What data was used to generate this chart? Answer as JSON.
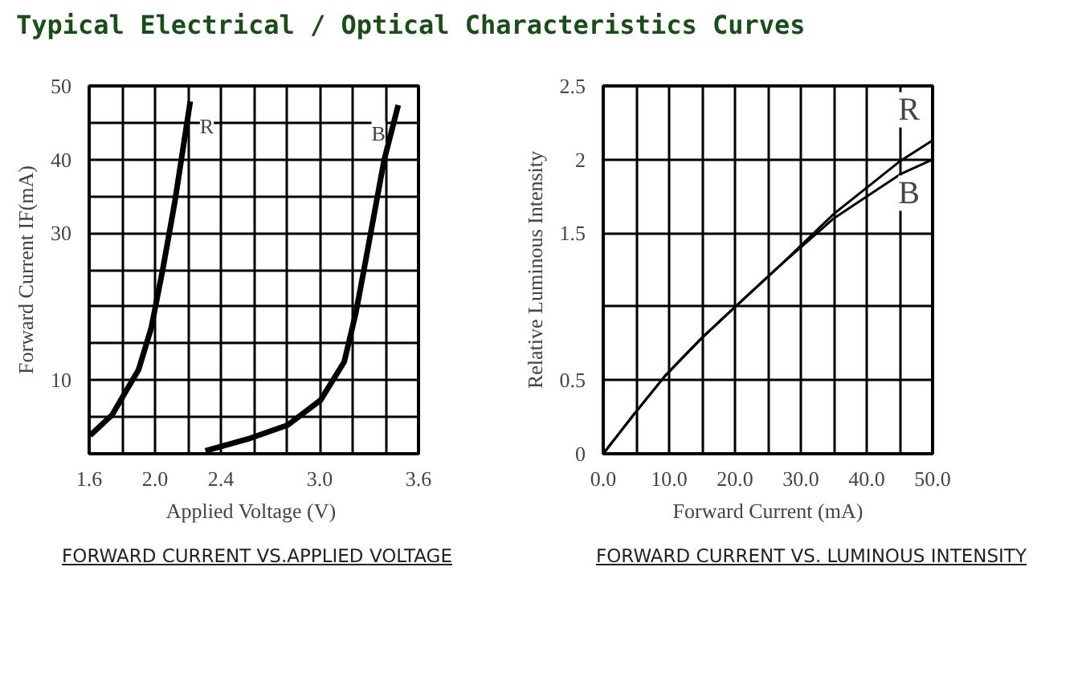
{
  "chart_data": [
    {
      "type": "line",
      "title": "FORWARD CURRENT VS.APPLIED VOLTAGE",
      "annotations": [
        "Typical Electrical / Optical Characteristics Curves"
      ],
      "xlabel": "Applied Voltage  (V)",
      "ylabel": "Forward Current IF(mA)",
      "xlim": [
        1.6,
        3.6
      ],
      "ylim": [
        0,
        50
      ],
      "xticks": [
        {
          "value": 1.6,
          "label": "1.6"
        },
        {
          "value": 1.8,
          "label": null
        },
        {
          "value": 2.0,
          "label": "2.0"
        },
        {
          "value": 2.2,
          "label": null
        },
        {
          "value": 2.4,
          "label": "2.4"
        },
        {
          "value": 2.6,
          "label": null
        },
        {
          "value": 2.8,
          "label": null
        },
        {
          "value": 3.0,
          "label": "3.0"
        },
        {
          "value": 3.2,
          "label": null
        },
        {
          "value": 3.4,
          "label": null
        },
        {
          "value": 3.6,
          "label": "3.6"
        }
      ],
      "yticks": [
        {
          "value": 5,
          "label": null
        },
        10,
        {
          "value": 15,
          "label": null
        },
        {
          "value": 20,
          "label": null
        },
        {
          "value": 25,
          "label": null
        },
        30,
        {
          "value": 35,
          "label": null
        },
        40,
        {
          "value": 45,
          "label": null
        },
        50
      ],
      "grid": true,
      "marker": "none",
      "line_style": "solid",
      "series": [
        {
          "name": "R",
          "color": "#000000",
          "x": [
            1.606,
            1.74,
            1.81,
            1.9,
            1.977,
            2.049,
            2.12,
            2.214
          ],
          "values": [
            2.5,
            5.3,
            8.0,
            11.4,
            17.1,
            25.3,
            34.2,
            47.9
          ]
        },
        {
          "name": "B",
          "color": "#000000",
          "x": [
            2.306,
            2.563,
            2.806,
            3.006,
            3.149,
            3.22,
            3.277,
            3.391,
            3.477
          ],
          "values": [
            0.4,
            2.0,
            3.9,
            7.3,
            12.5,
            19.2,
            26.0,
            39.9,
            47.4
          ]
        }
      ]
    },
    {
      "type": "line",
      "title": "FORWARD CURRENT VS. LUMINOUS INTENSITY",
      "xlabel": "Forward Current (mA)",
      "ylabel": "Relative Luminous Intensity",
      "xlim": [
        0,
        50
      ],
      "ylim": [
        0,
        2.5
      ],
      "xticks": [
        {
          "value": 0,
          "label": "0.0"
        },
        {
          "value": 5,
          "label": null
        },
        {
          "value": 10,
          "label": "10.0"
        },
        {
          "value": 15,
          "label": null
        },
        {
          "value": 20,
          "label": "20.0"
        },
        {
          "value": 25,
          "label": null
        },
        {
          "value": 30,
          "label": "30.0"
        },
        {
          "value": 35,
          "label": null
        },
        {
          "value": 40,
          "label": "40.0"
        },
        {
          "value": 45,
          "label": null
        },
        {
          "value": 50,
          "label": "50.0"
        }
      ],
      "yticks": [
        0,
        0.5,
        {
          "value": 1,
          "label": null
        },
        1.5,
        2,
        2.5
      ],
      "grid": true,
      "marker": "none",
      "line_style": "solid",
      "series": [
        {
          "name": "R",
          "color": "#000000",
          "x": [
            0,
            4.7,
            9.4,
            14.8,
            19.1,
            27.1,
            35,
            45.1,
            50
          ],
          "values": [
            0,
            0.27,
            0.53,
            0.78,
            0.96,
            1.29,
            1.63,
            1.99,
            2.13
          ]
        },
        {
          "name": "B",
          "color": "#000000",
          "x": [
            0,
            4.7,
            9.4,
            14.8,
            19.1,
            27.1,
            35,
            45.1,
            50
          ],
          "values": [
            0,
            0.27,
            0.53,
            0.78,
            0.96,
            1.29,
            1.6,
            1.9,
            2.0
          ]
        }
      ]
    }
  ]
}
